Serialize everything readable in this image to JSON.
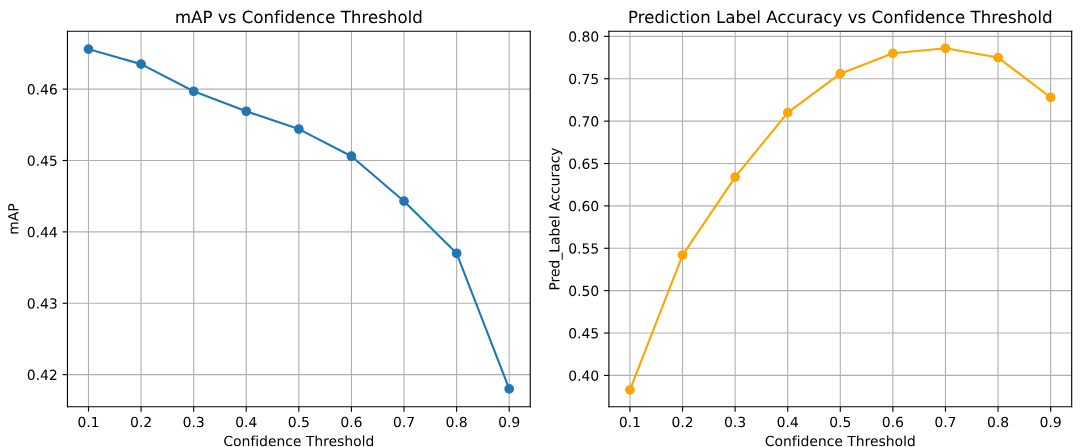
{
  "chart_data": [
    {
      "type": "line",
      "title": "mAP vs Confidence Threshold",
      "xlabel": "Confidence Threshold",
      "ylabel": "mAP",
      "x": [
        0.1,
        0.2,
        0.3,
        0.4,
        0.5,
        0.6,
        0.7,
        0.8,
        0.9
      ],
      "series": [
        {
          "color": "#1f77b4",
          "values": [
            0.4656,
            0.4635,
            0.4597,
            0.4569,
            0.4544,
            0.4506,
            0.4443,
            0.437,
            0.418
          ]
        }
      ],
      "xlim": [
        0.06,
        0.94
      ],
      "ylim": [
        0.4155,
        0.4681
      ],
      "xticks": [
        0.1,
        0.2,
        0.3,
        0.4,
        0.5,
        0.6,
        0.7,
        0.8,
        0.9
      ],
      "yticks": [
        0.42,
        0.43,
        0.44,
        0.45,
        0.46
      ],
      "grid": true,
      "marker": "circle",
      "line_style": "solid"
    },
    {
      "type": "line",
      "title": "Prediction Label Accuracy vs Confidence Threshold",
      "xlabel": "Confidence Threshold",
      "ylabel": "Pred_Label Accuracy",
      "x": [
        0.1,
        0.2,
        0.3,
        0.4,
        0.5,
        0.6,
        0.7,
        0.8,
        0.9
      ],
      "series": [
        {
          "color": "#ffa500",
          "values": [
            0.383,
            0.542,
            0.634,
            0.71,
            0.756,
            0.78,
            0.786,
            0.775,
            0.728
          ]
        }
      ],
      "xlim": [
        0.06,
        0.94
      ],
      "ylim": [
        0.363,
        0.806
      ],
      "xticks": [
        0.1,
        0.2,
        0.3,
        0.4,
        0.5,
        0.6,
        0.7,
        0.8,
        0.9
      ],
      "yticks": [
        {
          "value": 0.4,
          "label": "0.40"
        },
        0.45,
        {
          "value": 0.5,
          "label": "0.50"
        },
        0.55,
        {
          "value": 0.6,
          "label": "0.60"
        },
        0.65,
        {
          "value": 0.7,
          "label": "0.70"
        },
        0.75,
        {
          "value": 0.8,
          "label": "0.80"
        }
      ],
      "grid": true,
      "marker": "circle",
      "line_style": "solid"
    }
  ]
}
